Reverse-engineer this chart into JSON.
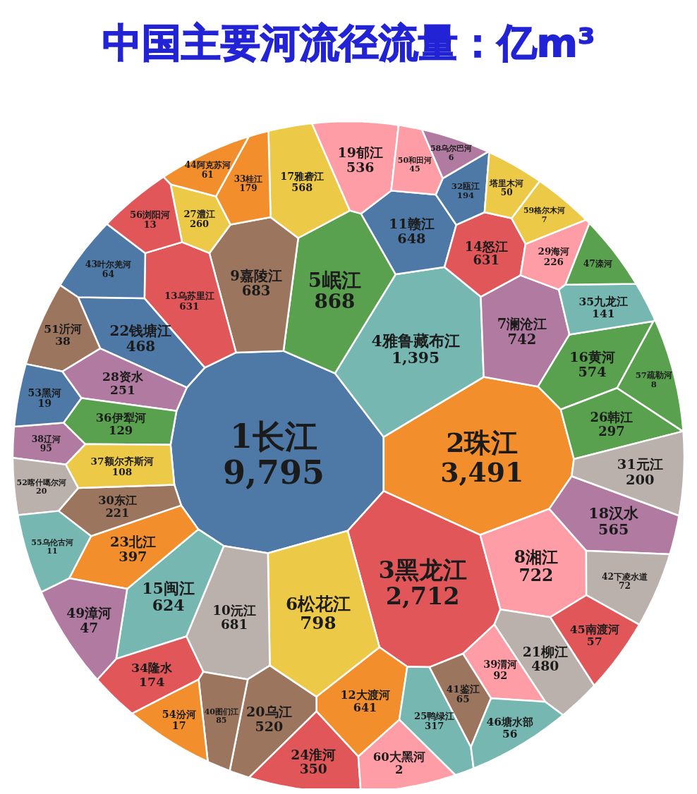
{
  "chart_data": {
    "type": "other",
    "title": "中国主要河流径流量：亿m³",
    "categories": [
      "1长江",
      "2珠江",
      "3黑龙江",
      "4雅鲁藏布江",
      "5岷江",
      "6松花江",
      "7澜沧江",
      "8湘江",
      "9嘉陵江",
      "10沅江",
      "11赣江",
      "12大渡河",
      "13乌苏里江",
      "14怒江",
      "15闽江",
      "16黄河",
      "17雅砻江",
      "18汉水",
      "19郁江",
      "20乌江",
      "21柳江",
      "22钱塘江",
      "23北江",
      "24淮河",
      "25鸭绿江",
      "26韩江",
      "27澧江",
      "28资水",
      "29海河",
      "30东江",
      "31元江",
      "32瓯江",
      "33桂江",
      "34隆水",
      "35九龙江",
      "36伊犁河",
      "37额尔齐斯河",
      "38辽河",
      "39渭河",
      "40图们江",
      "41鉴江",
      "42下凌水道",
      "43叶尔羌河",
      "44阿克苏河",
      "45南渡河",
      "46塘水部",
      "47滦河",
      "49漳河",
      "50和田河",
      "51沂河",
      "52喀什噶尔河",
      "53黑河",
      "54汾河",
      "55乌伦古河",
      "56浏阳河",
      "57疏勒河",
      "58乌尔巴河",
      "59格尔木河",
      "60大黑河",
      "塔里木河"
    ],
    "values": [
      9795,
      3491,
      2712,
      1395,
      868,
      798,
      742,
      722,
      683,
      681,
      648,
      641,
      631,
      631,
      624,
      574,
      568,
      565,
      536,
      520,
      480,
      468,
      397,
      350,
      317,
      297,
      260,
      251,
      226,
      221,
      200,
      194,
      179,
      174,
      141,
      129,
      108,
      95,
      92,
      85,
      65,
      72,
      64,
      61,
      57,
      56,
      null,
      47,
      45,
      38,
      20,
      19,
      17,
      11,
      13,
      8,
      6,
      7,
      2,
      50
    ],
    "colors": [
      "#4e79a7",
      "#f28e2b",
      "#e15759",
      "#76b7b2",
      "#59a14f",
      "#edc948",
      "#b07aa1",
      "#ff9da7",
      "#9c755f",
      "#bab0ac",
      "#4e79a7",
      "#f28e2b",
      "#e15759",
      "#e15759",
      "#76b7b2",
      "#59a14f",
      "#edc948",
      "#b07aa1",
      "#ff9da7",
      "#9c755f",
      "#bab0ac",
      "#4e79a7",
      "#f28e2b",
      "#e15759",
      "#76b7b2",
      "#59a14f",
      "#edc948",
      "#b07aa1",
      "#ff9da7",
      "#9c755f",
      "#bab0ac",
      "#4e79a7",
      "#f28e2b",
      "#e15759",
      "#76b7b2",
      "#59a14f",
      "#edc948",
      "#b07aa1",
      "#ff9da7",
      "#9c755f",
      "#9c755f",
      "#bab0ac",
      "#4e79a7",
      "#f28e2b",
      "#e15759",
      "#76b7b2",
      "#59a14f",
      "#b07aa1",
      "#ff9da7",
      "#9c755f",
      "#bab0ac",
      "#4e79a7",
      "#f28e2b",
      "#76b7b2",
      "#e15759",
      "#59a14f",
      "#b07aa1",
      "#edc948",
      "#ff9da7",
      "#edc948"
    ],
    "value_labels": [
      "9,795",
      "3,491",
      "2,712",
      "1,395",
      "868",
      "798",
      "742",
      "722",
      "683",
      "681",
      "648",
      "641",
      "631",
      "631",
      "624",
      "574",
      "568",
      "565",
      "536",
      "520",
      "480",
      "468",
      "397",
      "350",
      "317",
      "297",
      "260",
      "251",
      "226",
      "221",
      "200",
      "194",
      "179",
      "174",
      "141",
      "129",
      "108",
      "95",
      "92",
      "85",
      "65",
      "72",
      "64",
      "61",
      "57",
      "56",
      null,
      "47",
      "45",
      "38",
      "20",
      "19",
      "17",
      "11",
      "13",
      "8",
      "6",
      "7",
      "2",
      "50"
    ]
  }
}
